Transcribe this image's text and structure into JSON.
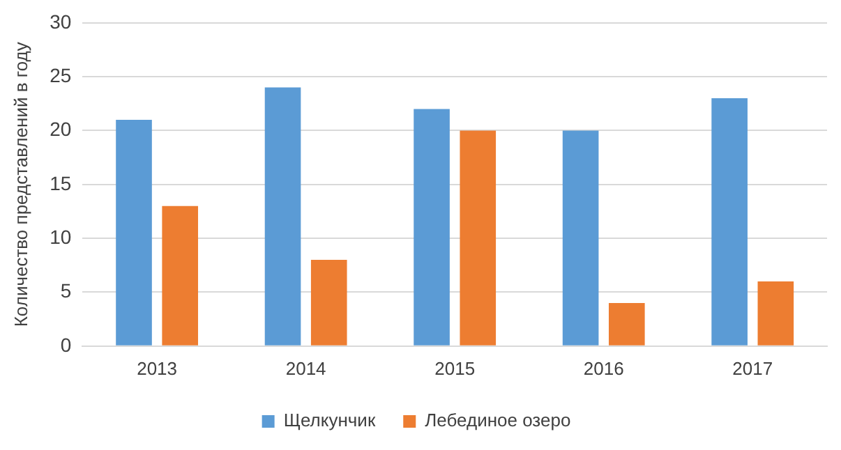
{
  "chart_data": {
    "type": "bar",
    "ylabel": "Количество представлений в году",
    "categories": [
      "2013",
      "2014",
      "2015",
      "2016",
      "2017"
    ],
    "series": [
      {
        "name": "Щелкунчик",
        "color": "#5b9bd5",
        "values": [
          21,
          24,
          22,
          20,
          23
        ]
      },
      {
        "name": "Лебединое озеро",
        "color": "#ed7d31",
        "values": [
          13,
          8,
          20,
          4,
          6
        ]
      }
    ],
    "ylim": [
      0,
      30
    ],
    "yticks": [
      0,
      5,
      10,
      15,
      20,
      25,
      30
    ],
    "grid": "y",
    "legend": "bottom"
  }
}
